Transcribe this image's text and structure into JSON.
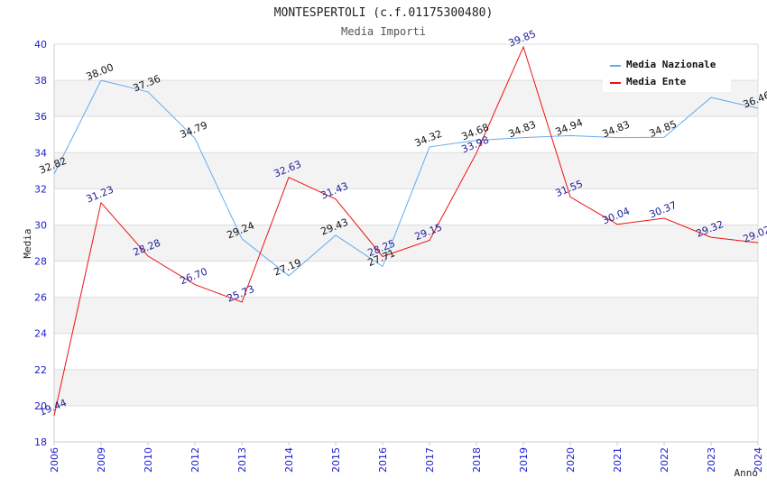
{
  "chart_data": {
    "type": "line",
    "title": "MONTESPERTOLI (c.f.01175300480)",
    "subtitle": "Media Importi",
    "xlabel": "Anno",
    "ylabel": "Media",
    "x": [
      "2006",
      "2009",
      "2010",
      "2012",
      "2013",
      "2014",
      "2015",
      "2016",
      "2017",
      "2018",
      "2019",
      "2020",
      "2021",
      "2022",
      "2023",
      "2024"
    ],
    "ylim": [
      18,
      40
    ],
    "yticks": [
      "18",
      "20",
      "22",
      "24",
      "26",
      "28",
      "30",
      "32",
      "34",
      "36",
      "38",
      "40"
    ],
    "legend_position": "top-right",
    "grid": true,
    "series": [
      {
        "name": "Media Nazionale",
        "color": "#66aaee",
        "label_color": "#111111",
        "values": [
          32.82,
          38.0,
          37.36,
          34.79,
          29.24,
          27.19,
          29.43,
          27.71,
          34.32,
          34.68,
          34.83,
          34.94,
          34.83,
          34.85,
          37.05,
          36.46
        ],
        "labels": [
          "32.82",
          "38.00",
          "37.36",
          "34.79",
          "29.24",
          "27.19",
          "29.43",
          "27.71",
          "34.32",
          "34.68",
          "34.83",
          "34.94",
          "34.83",
          "34.85",
          "",
          "36.46"
        ]
      },
      {
        "name": "Media Ente",
        "color": "#ee1111",
        "label_color": "#1c1c99",
        "values": [
          19.44,
          31.23,
          28.28,
          26.7,
          25.73,
          32.63,
          31.43,
          28.25,
          29.15,
          33.98,
          39.85,
          31.55,
          30.04,
          30.37,
          29.32,
          29.02
        ],
        "labels": [
          "19.44",
          "31.23",
          "28.28",
          "26.70",
          "25.73",
          "32.63",
          "31.43",
          "28.25",
          "29.15",
          "33.98",
          "39.85",
          "31.55",
          "30.04",
          "30.37",
          "29.32",
          "29.02"
        ]
      }
    ]
  }
}
